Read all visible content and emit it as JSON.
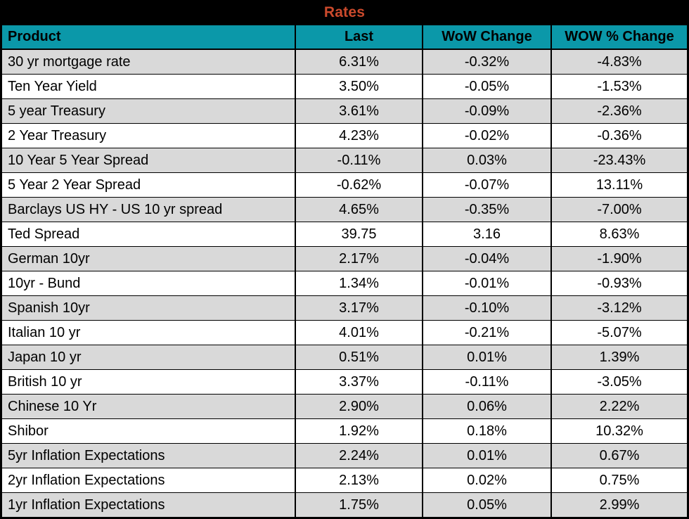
{
  "chart_data": {
    "type": "table",
    "title": "Rates",
    "columns": [
      "Product",
      "Last",
      "WoW Change",
      "WOW % Change"
    ],
    "rows": [
      [
        "30 yr mortgage rate",
        "6.31%",
        "-0.32%",
        "-4.83%"
      ],
      [
        "Ten Year Yield",
        "3.50%",
        "-0.05%",
        "-1.53%"
      ],
      [
        "5 year Treasury",
        "3.61%",
        "-0.09%",
        "-2.36%"
      ],
      [
        "2 Year Treasury",
        "4.23%",
        "-0.02%",
        "-0.36%"
      ],
      [
        "10 Year 5 Year Spread",
        "-0.11%",
        "0.03%",
        "-23.43%"
      ],
      [
        "5 Year 2 Year Spread",
        "-0.62%",
        "-0.07%",
        "13.11%"
      ],
      [
        "Barclays US HY - US 10 yr spread",
        "4.65%",
        "-0.35%",
        "-7.00%"
      ],
      [
        "Ted Spread",
        "39.75",
        "3.16",
        "8.63%"
      ],
      [
        "German 10yr",
        "2.17%",
        "-0.04%",
        "-1.90%"
      ],
      [
        "10yr - Bund",
        "1.34%",
        "-0.01%",
        "-0.93%"
      ],
      [
        "Spanish 10yr",
        "3.17%",
        "-0.10%",
        "-3.12%"
      ],
      [
        "Italian 10 yr",
        "4.01%",
        "-0.21%",
        "-5.07%"
      ],
      [
        "Japan 10 yr",
        "0.51%",
        "0.01%",
        "1.39%"
      ],
      [
        "British 10 yr",
        "3.37%",
        "-0.11%",
        "-3.05%"
      ],
      [
        "Chinese 10 Yr",
        "2.90%",
        "0.06%",
        "2.22%"
      ],
      [
        "Shibor",
        "1.92%",
        "0.18%",
        "10.32%"
      ],
      [
        "5yr Inflation Expectations",
        "2.24%",
        "0.01%",
        "0.67%"
      ],
      [
        "2yr Inflation Expectations",
        "2.13%",
        "0.02%",
        "0.75%"
      ],
      [
        "1yr Inflation Expectations",
        "1.75%",
        "0.05%",
        "2.99%"
      ]
    ],
    "layout": {
      "title_position": "top-center",
      "alternating_row_shading": true,
      "first_shaded_row_index": 0
    }
  },
  "colors": {
    "title_text": "#CB4A2C",
    "title_bg": "#000000",
    "header_bg": "#0B98A9",
    "header_text": "#000000",
    "row_alt_bg": "#D9D9D9",
    "row_bg": "#FFFFFF",
    "border": "#000000"
  }
}
